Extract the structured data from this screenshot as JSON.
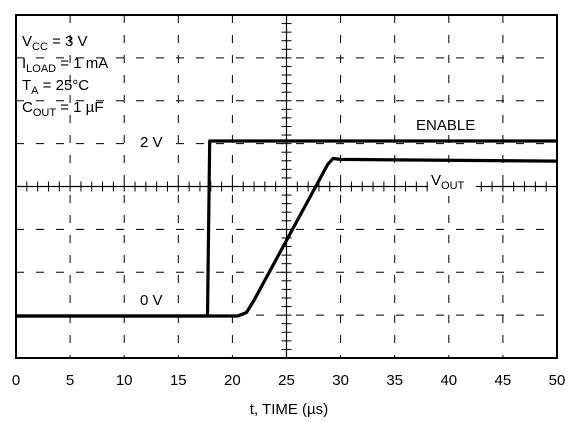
{
  "chart_data": {
    "type": "line",
    "xlabel": {
      "prefix": "t, TIME (",
      "unit": "µs",
      "suffix": ")"
    },
    "xlim": [
      0,
      50
    ],
    "x_ticks": [
      "0",
      "5",
      "10",
      "15",
      "20",
      "25",
      "30",
      "35",
      "40",
      "45",
      "50"
    ],
    "grid": true,
    "conditions": [
      {
        "main": "V",
        "sub": "CC",
        "rest": " = 3 V"
      },
      {
        "main": "I",
        "sub": "LOAD",
        "rest": " = 1 mA"
      },
      {
        "main": "T",
        "sub": "A",
        "rest": " = 25°C"
      },
      {
        "main": "C",
        "sub": "OUT",
        "rest": " = 1 µF"
      }
    ],
    "annotations": {
      "level_2v": "2 V",
      "level_0v": "0 V",
      "enable": "ENABLE",
      "vout": {
        "main": "V",
        "sub": "OUT"
      }
    },
    "series": [
      {
        "name": "ENABLE",
        "points": [
          [
            0,
            0
          ],
          [
            17.7,
            0
          ],
          [
            17.9,
            2
          ],
          [
            50,
            2
          ]
        ]
      },
      {
        "name": "VOUT",
        "points": [
          [
            0,
            0
          ],
          [
            20.5,
            0
          ],
          [
            21.3,
            0.04
          ],
          [
            22.0,
            0.18
          ],
          [
            28.8,
            1.73
          ],
          [
            29.3,
            1.8
          ],
          [
            30.0,
            1.79
          ],
          [
            50,
            1.77
          ]
        ]
      }
    ]
  }
}
